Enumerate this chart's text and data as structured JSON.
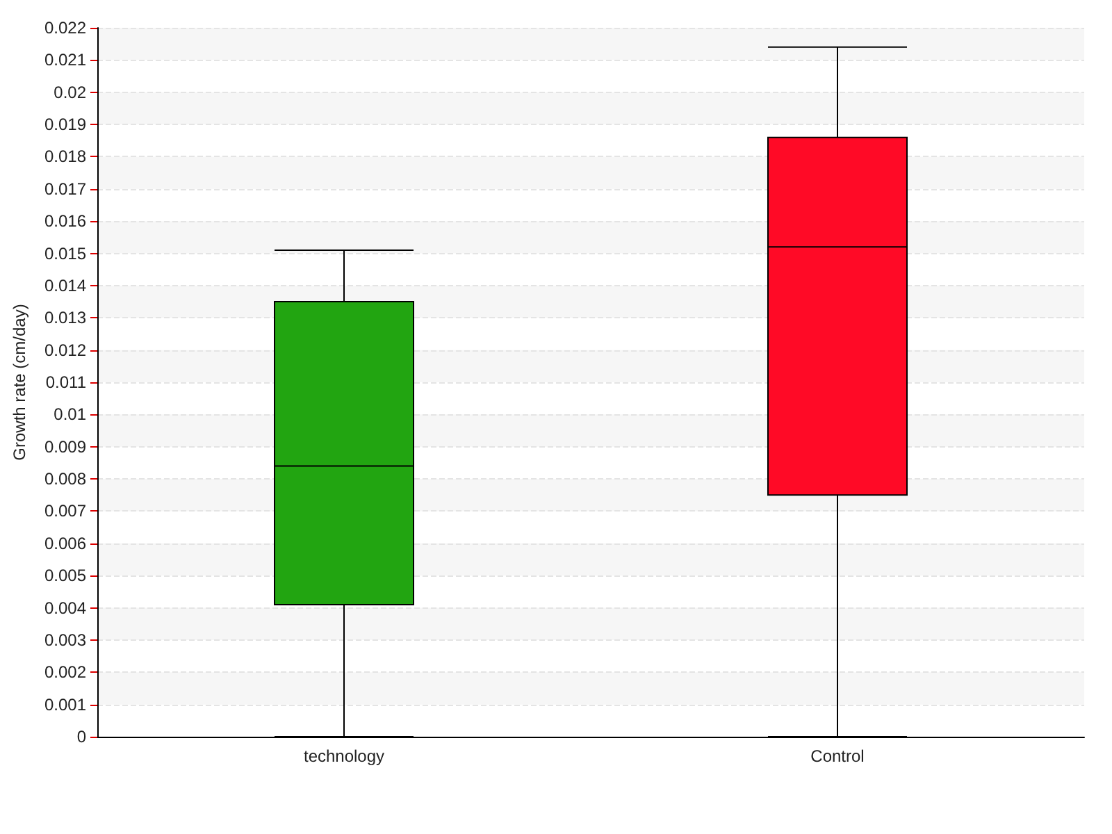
{
  "chart_data": {
    "type": "box",
    "ylabel": "Growth rate (cm/day)",
    "categories": [
      "technology",
      "Control"
    ],
    "colors": [
      "#22a511",
      "#ff0a26"
    ],
    "boxes": [
      {
        "low": 0,
        "q1": 0.0041,
        "median": 0.0084,
        "q3": 0.0135,
        "high": 0.0151
      },
      {
        "low": 0,
        "q1": 0.0075,
        "median": 0.0152,
        "q3": 0.0186,
        "high": 0.0214
      }
    ],
    "ylim": [
      0,
      0.022
    ],
    "yticks": [
      0,
      0.001,
      0.002,
      0.003,
      0.004,
      0.005,
      0.006,
      0.007,
      0.008,
      0.009,
      0.01,
      0.011,
      0.012,
      0.013,
      0.014,
      0.015,
      0.016,
      0.017,
      0.018,
      0.019,
      0.02,
      0.021,
      0.022
    ],
    "grid": "y"
  }
}
